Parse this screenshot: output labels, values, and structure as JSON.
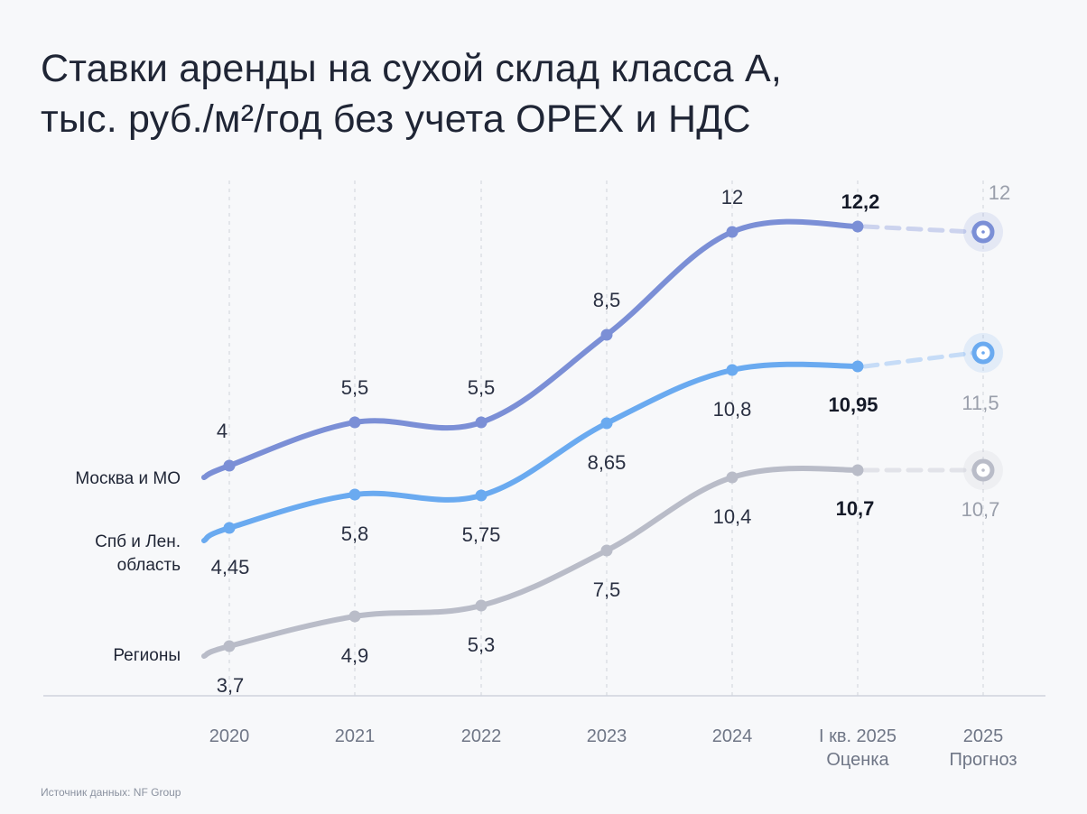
{
  "title": {
    "line1": "Ставки аренды на сухой склад класса А,",
    "line2": "тыс. руб./м²/год без учета OPEX и НДС"
  },
  "source": "Источник данных:  NF Group",
  "colors": {
    "background": "#f7f8fa",
    "moscow": "#7b8fd6",
    "spb": "#6aaaf0",
    "regions": "#b9bcc8",
    "forecast_label": "#9a9fab",
    "bold_label": "#151a28"
  },
  "chart_data": {
    "type": "line",
    "title": "Ставки аренды на сухой склад класса А, тыс. руб./м²/год без учета OPEX и НДС",
    "categories": [
      {
        "main": "2020",
        "sub": ""
      },
      {
        "main": "2021",
        "sub": ""
      },
      {
        "main": "2022",
        "sub": ""
      },
      {
        "main": "2023",
        "sub": ""
      },
      {
        "main": "2024",
        "sub": ""
      },
      {
        "main": "I кв. 2025",
        "sub": "Оценка"
      },
      {
        "main": "2025",
        "sub": "Прогноз"
      }
    ],
    "xlabel": "",
    "ylabel": "тыс. руб./м²/год",
    "ylim": [
      0,
      13
    ],
    "grid": "vertical dashed",
    "series": [
      {
        "key": "moscow",
        "name": "Москва и МО",
        "values": [
          4,
          5.5,
          5.5,
          8.5,
          12,
          12.2,
          12
        ],
        "labels": [
          "4",
          "5,5",
          "5,5",
          "8,5",
          "12",
          "12,2",
          "12"
        ],
        "label_pos": [
          "above",
          "above",
          "above",
          "above",
          "above",
          "above-bold",
          "above-forecast"
        ]
      },
      {
        "key": "spb",
        "name": "Спб и Лен. область",
        "values": [
          4.45,
          5.8,
          5.75,
          8.65,
          10.8,
          10.95,
          11.5
        ],
        "labels": [
          "4,45",
          "5,8",
          "5,75",
          "8,65",
          "10,8",
          "10,95",
          "11,5"
        ],
        "label_pos": [
          "below",
          "below",
          "below",
          "below",
          "below",
          "below-bold",
          "below-forecast"
        ]
      },
      {
        "key": "regions",
        "name": "Регионы",
        "values": [
          3.7,
          4.9,
          5.3,
          7.5,
          10.4,
          10.7,
          10.7
        ],
        "labels": [
          "3,7",
          "4,9",
          "5,3",
          "7,5",
          "10,4",
          "10,7",
          "10,7"
        ],
        "label_pos": [
          "below",
          "below",
          "below",
          "below",
          "below",
          "below-bold",
          "below-forecast"
        ]
      }
    ]
  }
}
